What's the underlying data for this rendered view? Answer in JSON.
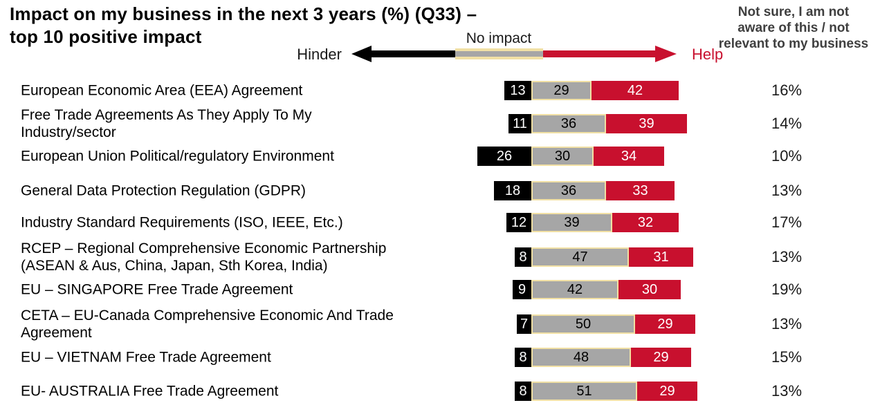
{
  "title": "Impact on my business in the next 3 years (%) (Q33) –\ntop 10 positive impact",
  "right_column_header": "Not sure, I am not aware of this / not relevant to my business",
  "legend": {
    "hinder_label": "Hinder",
    "no_impact_label": "No impact",
    "help_label": "Help"
  },
  "colors": {
    "hinder_bar": "#000000",
    "no_impact_bar": "#a6a6a6",
    "no_impact_border": "#f1e0a4",
    "help_bar": "#c8102e",
    "help_text": "#c8102e",
    "header_text": "#3f3f3f"
  },
  "chart_data": {
    "type": "bar",
    "orientation": "horizontal-diverging-stacked",
    "title": "Impact on my business in the next 3 years (%) (Q33) – top 10 positive impact",
    "unit": "%",
    "series_names": [
      "Hinder",
      "No impact",
      "Help"
    ],
    "extra_column_header": "Not sure, I am not aware of this / not relevant to my business",
    "legend_position": "top",
    "rows": [
      {
        "label": "European Economic Area (EEA) Agreement",
        "hinder": 13,
        "no_impact": 29,
        "help": 42,
        "not_sure": "16%"
      },
      {
        "label": "Free Trade Agreements As They Apply To My\nIndustry/sector",
        "hinder": 11,
        "no_impact": 36,
        "help": 39,
        "not_sure": "14%"
      },
      {
        "label": "European Union Political/regulatory Environment",
        "hinder": 26,
        "no_impact": 30,
        "help": 34,
        "not_sure": "10%"
      },
      {
        "label": "General Data Protection Regulation (GDPR)",
        "hinder": 18,
        "no_impact": 36,
        "help": 33,
        "not_sure": "13%"
      },
      {
        "label": "Industry Standard Requirements (ISO, IEEE, Etc.)",
        "hinder": 12,
        "no_impact": 39,
        "help": 32,
        "not_sure": "17%"
      },
      {
        "label": "RCEP – Regional Comprehensive Economic Partnership\n(ASEAN & Aus, China, Japan, Sth Korea, India)",
        "hinder": 8,
        "no_impact": 47,
        "help": 31,
        "not_sure": "13%"
      },
      {
        "label": "EU – SINGAPORE Free Trade Agreement",
        "hinder": 9,
        "no_impact": 42,
        "help": 30,
        "not_sure": "19%"
      },
      {
        "label": "CETA – EU-Canada Comprehensive Economic And Trade\nAgreement",
        "hinder": 7,
        "no_impact": 50,
        "help": 29,
        "not_sure": "13%"
      },
      {
        "label": "EU – VIETNAM Free Trade Agreement",
        "hinder": 8,
        "no_impact": 48,
        "help": 29,
        "not_sure": "15%"
      },
      {
        "label": "EU- AUSTRALIA Free Trade Agreement",
        "hinder": 8,
        "no_impact": 51,
        "help": 29,
        "not_sure": "13%"
      }
    ]
  }
}
